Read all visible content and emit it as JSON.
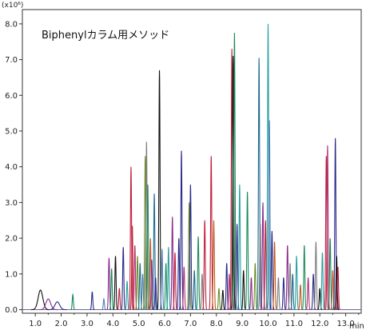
{
  "chart_data": {
    "type": "line",
    "title": "Biphenylカラム用メソッド",
    "y_unit_label": "(x10⁶)",
    "xlabel": "min",
    "ylabel": "",
    "xlim": [
      0.5,
      13.6
    ],
    "ylim": [
      -0.1,
      8.4
    ],
    "x_ticks": [
      1.0,
      2.0,
      3.0,
      4.0,
      5.0,
      6.0,
      7.0,
      8.0,
      9.0,
      10.0,
      11.0,
      12.0,
      13.0
    ],
    "x_tick_labels": [
      "1.0",
      "2.0",
      "3.0",
      "4.0",
      "5.0",
      "6.0",
      "7.0",
      "8.0",
      "9.0",
      "10.0",
      "11.0",
      "12.0",
      "13.0"
    ],
    "y_ticks": [
      0.0,
      1.0,
      2.0,
      3.0,
      4.0,
      5.0,
      6.0,
      7.0,
      8.0
    ],
    "y_tick_labels": [
      "0.0",
      "1.0",
      "2.0",
      "3.0",
      "4.0",
      "5.0",
      "6.0",
      "7.0",
      "8.0"
    ],
    "grid": false,
    "legend": "none",
    "series_colors": [
      "#111111",
      "#c0203a",
      "#1f6b8f",
      "#1a8c5a",
      "#2a2a8c",
      "#8c2a8c",
      "#b03070",
      "#4d7fb8",
      "#7f7f7f",
      "#2aa0a0",
      "#6b8e23",
      "#c05a20"
    ],
    "peaks": [
      {
        "rt": 1.2,
        "h": 0.55,
        "c": 0
      },
      {
        "rt": 1.5,
        "h": 0.3,
        "c": 5
      },
      {
        "rt": 1.85,
        "h": 0.22,
        "c": 4
      },
      {
        "rt": 2.45,
        "h": 0.42,
        "c": 3
      },
      {
        "rt": 3.2,
        "h": 0.5,
        "c": 4
      },
      {
        "rt": 3.65,
        "h": 0.3,
        "c": 7
      },
      {
        "rt": 3.85,
        "h": 1.45,
        "c": 5
      },
      {
        "rt": 3.95,
        "h": 1.15,
        "c": 3
      },
      {
        "rt": 4.1,
        "h": 1.5,
        "c": 0
      },
      {
        "rt": 4.25,
        "h": 0.6,
        "c": 1
      },
      {
        "rt": 4.4,
        "h": 1.75,
        "c": 4
      },
      {
        "rt": 4.55,
        "h": 0.8,
        "c": 9
      },
      {
        "rt": 4.7,
        "h": 4.0,
        "c": 1
      },
      {
        "rt": 4.75,
        "h": 2.35,
        "c": 1
      },
      {
        "rt": 4.85,
        "h": 1.8,
        "c": 6
      },
      {
        "rt": 4.95,
        "h": 1.5,
        "c": 10
      },
      {
        "rt": 5.05,
        "h": 1.3,
        "c": 2
      },
      {
        "rt": 5.15,
        "h": 1.0,
        "c": 7
      },
      {
        "rt": 5.25,
        "h": 4.3,
        "c": 10
      },
      {
        "rt": 5.3,
        "h": 4.7,
        "c": 8
      },
      {
        "rt": 5.35,
        "h": 3.5,
        "c": 3
      },
      {
        "rt": 5.45,
        "h": 2.0,
        "c": 11
      },
      {
        "rt": 5.5,
        "h": 1.4,
        "c": 5
      },
      {
        "rt": 5.6,
        "h": 3.25,
        "c": 2
      },
      {
        "rt": 5.65,
        "h": 0.9,
        "c": 4
      },
      {
        "rt": 5.8,
        "h": 6.7,
        "c": 0
      },
      {
        "rt": 5.9,
        "h": 1.7,
        "c": 7
      },
      {
        "rt": 6.05,
        "h": 1.3,
        "c": 3
      },
      {
        "rt": 6.15,
        "h": 1.75,
        "c": 9
      },
      {
        "rt": 6.3,
        "h": 2.6,
        "c": 5
      },
      {
        "rt": 6.4,
        "h": 1.6,
        "c": 1
      },
      {
        "rt": 6.55,
        "h": 2.0,
        "c": 4
      },
      {
        "rt": 6.65,
        "h": 4.45,
        "c": 4
      },
      {
        "rt": 6.75,
        "h": 1.2,
        "c": 6
      },
      {
        "rt": 6.95,
        "h": 3.0,
        "c": 10
      },
      {
        "rt": 7.0,
        "h": 3.5,
        "c": 4
      },
      {
        "rt": 7.15,
        "h": 1.1,
        "c": 2
      },
      {
        "rt": 7.3,
        "h": 2.05,
        "c": 3
      },
      {
        "rt": 7.45,
        "h": 1.0,
        "c": 8
      },
      {
        "rt": 7.55,
        "h": 2.5,
        "c": 1
      },
      {
        "rt": 7.8,
        "h": 4.3,
        "c": 1
      },
      {
        "rt": 7.9,
        "h": 2.5,
        "c": 11
      },
      {
        "rt": 8.1,
        "h": 0.6,
        "c": 10
      },
      {
        "rt": 8.25,
        "h": 0.55,
        "c": 0
      },
      {
        "rt": 8.4,
        "h": 1.3,
        "c": 4
      },
      {
        "rt": 8.5,
        "h": 1.0,
        "c": 6
      },
      {
        "rt": 8.6,
        "h": 7.3,
        "c": 1
      },
      {
        "rt": 8.65,
        "h": 7.1,
        "c": 0
      },
      {
        "rt": 8.7,
        "h": 7.75,
        "c": 3
      },
      {
        "rt": 8.8,
        "h": 2.4,
        "c": 4
      },
      {
        "rt": 8.9,
        "h": 3.5,
        "c": 9
      },
      {
        "rt": 9.05,
        "h": 1.1,
        "c": 0
      },
      {
        "rt": 9.2,
        "h": 3.3,
        "c": 3
      },
      {
        "rt": 9.35,
        "h": 0.9,
        "c": 5
      },
      {
        "rt": 9.5,
        "h": 1.3,
        "c": 10
      },
      {
        "rt": 9.65,
        "h": 7.05,
        "c": 2
      },
      {
        "rt": 9.7,
        "h": 2.4,
        "c": 8
      },
      {
        "rt": 9.8,
        "h": 3.0,
        "c": 5
      },
      {
        "rt": 9.9,
        "h": 2.5,
        "c": 1
      },
      {
        "rt": 10.0,
        "h": 8.0,
        "c": 9
      },
      {
        "rt": 10.05,
        "h": 5.3,
        "c": 7
      },
      {
        "rt": 10.15,
        "h": 2.2,
        "c": 4
      },
      {
        "rt": 10.25,
        "h": 1.9,
        "c": 11
      },
      {
        "rt": 10.4,
        "h": 0.9,
        "c": 8
      },
      {
        "rt": 10.6,
        "h": 0.9,
        "c": 4
      },
      {
        "rt": 10.75,
        "h": 1.8,
        "c": 5
      },
      {
        "rt": 10.85,
        "h": 1.3,
        "c": 8
      },
      {
        "rt": 10.95,
        "h": 1.0,
        "c": 2
      },
      {
        "rt": 11.1,
        "h": 1.5,
        "c": 9
      },
      {
        "rt": 11.25,
        "h": 0.7,
        "c": 11
      },
      {
        "rt": 11.4,
        "h": 1.8,
        "c": 3
      },
      {
        "rt": 11.55,
        "h": 0.9,
        "c": 6
      },
      {
        "rt": 11.75,
        "h": 1.0,
        "c": 4
      },
      {
        "rt": 11.85,
        "h": 1.9,
        "c": 8
      },
      {
        "rt": 12.0,
        "h": 0.6,
        "c": 0
      },
      {
        "rt": 12.1,
        "h": 1.6,
        "c": 9
      },
      {
        "rt": 12.25,
        "h": 4.3,
        "c": 1
      },
      {
        "rt": 12.3,
        "h": 4.6,
        "c": 6
      },
      {
        "rt": 12.4,
        "h": 2.0,
        "c": 3
      },
      {
        "rt": 12.5,
        "h": 1.1,
        "c": 11
      },
      {
        "rt": 12.6,
        "h": 4.8,
        "c": 4
      },
      {
        "rt": 12.65,
        "h": 1.5,
        "c": 0
      },
      {
        "rt": 12.7,
        "h": 1.2,
        "c": 1
      }
    ]
  }
}
